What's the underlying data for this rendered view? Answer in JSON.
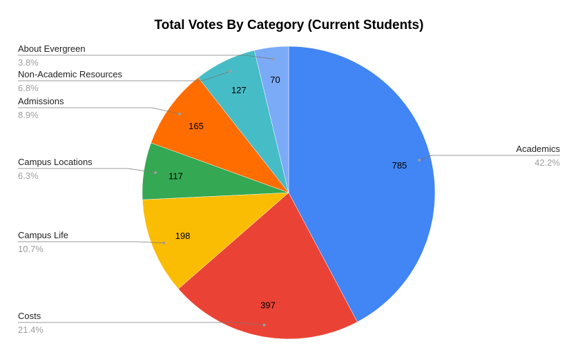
{
  "chart_data": {
    "type": "pie",
    "title": "Total Votes By Category (Current Students)",
    "slices": [
      {
        "label": "Academics",
        "value": 785,
        "percent": "42.2%",
        "color": "#4285f4"
      },
      {
        "label": "Costs",
        "value": 397,
        "percent": "21.4%",
        "color": "#ea4335"
      },
      {
        "label": "Campus Life",
        "value": 198,
        "percent": "10.7%",
        "color": "#fbbc04"
      },
      {
        "label": "Campus Locations",
        "value": 117,
        "percent": "6.3%",
        "color": "#34a853"
      },
      {
        "label": "Admissions",
        "value": 165,
        "percent": "8.9%",
        "color": "#ff6d01"
      },
      {
        "label": "Non-Academic Resources",
        "value": 127,
        "percent": "6.8%",
        "color": "#46bdc6"
      },
      {
        "label": "About Evergreen",
        "value": 70,
        "percent": "3.8%",
        "color": "#7baaf7"
      }
    ],
    "start": "12 o'clock",
    "direction": "clockwise",
    "legend": "none"
  }
}
